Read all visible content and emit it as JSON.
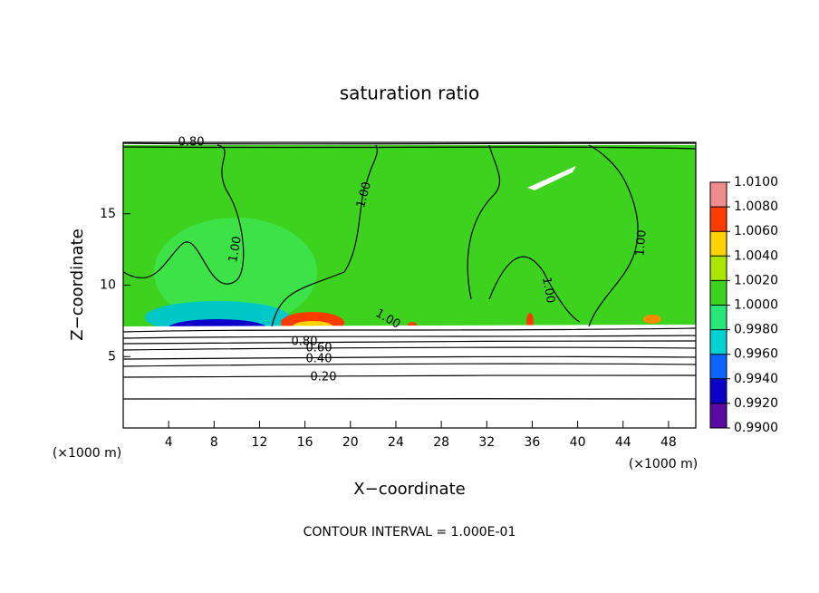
{
  "chart_data": {
    "type": "contour",
    "title": "saturation ratio",
    "x_label": "X−coordinate",
    "y_label": "Z−coordinate",
    "x_unit": "(×1000 m)",
    "footer": "CONTOUR INTERVAL = 1.000E-01",
    "xlim": [
      0,
      50.4
    ],
    "xticks": [
      4,
      8,
      12,
      16,
      20,
      24,
      28,
      32,
      36,
      40,
      44,
      48
    ],
    "ylim": [
      0,
      20
    ],
    "yticks": [
      5,
      10,
      15
    ],
    "contour_labels": [
      "0.80",
      "1.00",
      "1.00",
      "1.00",
      "1.00",
      "1.00",
      "0.80",
      "0.60",
      "0.40",
      "0.20"
    ],
    "colorbar": {
      "ticks": [
        {
          "value": 0.99,
          "label": "0.9900"
        },
        {
          "value": 0.992,
          "label": "0.9920"
        },
        {
          "value": 0.994,
          "label": "0.9940"
        },
        {
          "value": 0.996,
          "label": "0.9960"
        },
        {
          "value": 0.998,
          "label": "0.9980"
        },
        {
          "value": 1.0,
          "label": "1.0000"
        },
        {
          "value": 1.002,
          "label": "1.0020"
        },
        {
          "value": 1.004,
          "label": "1.0040"
        },
        {
          "value": 1.006,
          "label": "1.0060"
        },
        {
          "value": 1.008,
          "label": "1.0080"
        },
        {
          "value": 1.01,
          "label": "1.0100"
        }
      ],
      "colors": [
        "#5a0aa0",
        "#0a00c8",
        "#0a64ff",
        "#00d2d2",
        "#28e678",
        "#3cd21e",
        "#aae600",
        "#ffd200",
        "#ff3c00",
        "#f08c8c"
      ]
    }
  }
}
